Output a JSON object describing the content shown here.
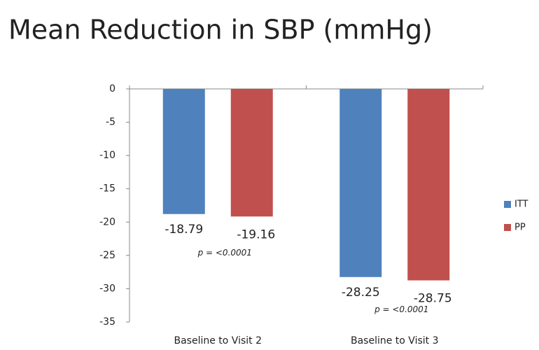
{
  "chart_data": {
    "type": "bar",
    "title": "Mean Reduction in SBP (mmHg)",
    "categories": [
      "Baseline to Visit 2",
      "Baseline to Visit 3"
    ],
    "series": [
      {
        "name": "ITT",
        "color": "#4f81bd",
        "values": [
          -18.79,
          -28.25
        ]
      },
      {
        "name": "PP",
        "color": "#c0504d",
        "values": [
          -19.16,
          -28.75
        ]
      }
    ],
    "annotations": [
      "p = <0.0001",
      "p = <0.0001"
    ],
    "ylim": [
      -35,
      0
    ],
    "yticks": [
      0,
      -5,
      -10,
      -15,
      -20,
      -25,
      -30,
      -35
    ],
    "legend": "right"
  }
}
